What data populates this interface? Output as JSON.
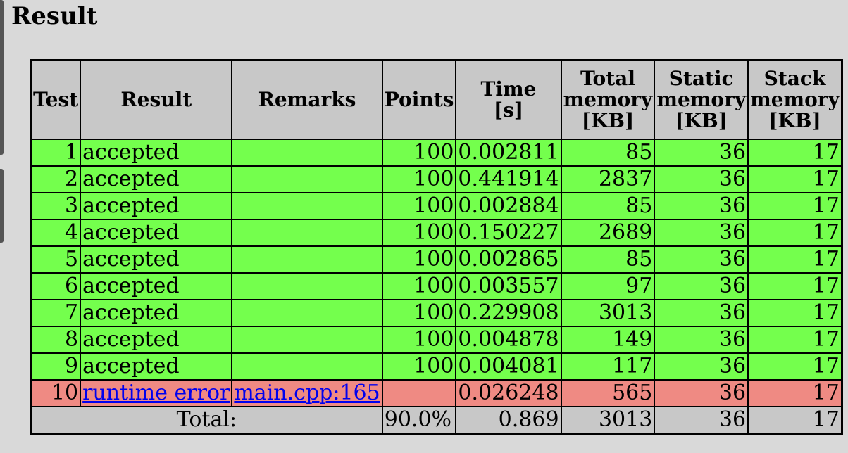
{
  "page": {
    "title": "Result"
  },
  "table": {
    "headers": {
      "test": "Test",
      "result": "Result",
      "remarks": "Remarks",
      "points": "Points",
      "time_line1": "Time",
      "time_line2": "[s]",
      "total_line1": "Total",
      "total_line2": "memory",
      "total_line3": "[KB]",
      "static_line1": "Static",
      "static_line2": "memory",
      "static_line3": "[KB]",
      "stack_line1": "Stack",
      "stack_line2": "memory",
      "stack_line3": "[KB]"
    },
    "rows": [
      {
        "test": "1",
        "result": "accepted",
        "remarks": "",
        "points": "100",
        "time": "0.002811",
        "total": "85",
        "static": "36",
        "stack": "17",
        "status": "ok"
      },
      {
        "test": "2",
        "result": "accepted",
        "remarks": "",
        "points": "100",
        "time": "0.441914",
        "total": "2837",
        "static": "36",
        "stack": "17",
        "status": "ok"
      },
      {
        "test": "3",
        "result": "accepted",
        "remarks": "",
        "points": "100",
        "time": "0.002884",
        "total": "85",
        "static": "36",
        "stack": "17",
        "status": "ok"
      },
      {
        "test": "4",
        "result": "accepted",
        "remarks": "",
        "points": "100",
        "time": "0.150227",
        "total": "2689",
        "static": "36",
        "stack": "17",
        "status": "ok"
      },
      {
        "test": "5",
        "result": "accepted",
        "remarks": "",
        "points": "100",
        "time": "0.002865",
        "total": "85",
        "static": "36",
        "stack": "17",
        "status": "ok"
      },
      {
        "test": "6",
        "result": "accepted",
        "remarks": "",
        "points": "100",
        "time": "0.003557",
        "total": "97",
        "static": "36",
        "stack": "17",
        "status": "ok"
      },
      {
        "test": "7",
        "result": "accepted",
        "remarks": "",
        "points": "100",
        "time": "0.229908",
        "total": "3013",
        "static": "36",
        "stack": "17",
        "status": "ok"
      },
      {
        "test": "8",
        "result": "accepted",
        "remarks": "",
        "points": "100",
        "time": "0.004878",
        "total": "149",
        "static": "36",
        "stack": "17",
        "status": "ok"
      },
      {
        "test": "9",
        "result": "accepted",
        "remarks": "",
        "points": "100",
        "time": "0.004081",
        "total": "117",
        "static": "36",
        "stack": "17",
        "status": "ok"
      },
      {
        "test": "10",
        "result": "runtime error",
        "remarks": "main.cpp:165",
        "points": "",
        "time": "0.026248",
        "total": "565",
        "static": "36",
        "stack": "17",
        "status": "err"
      }
    ],
    "totals": {
      "label": "Total:",
      "points": "90.0%",
      "time": "0.869",
      "total": "3013",
      "static": "36",
      "stack": "17"
    }
  },
  "colors": {
    "accepted": "#74ff4d",
    "error": "#ef8a83",
    "header": "#c8c8c8",
    "link": "#0000ee"
  }
}
